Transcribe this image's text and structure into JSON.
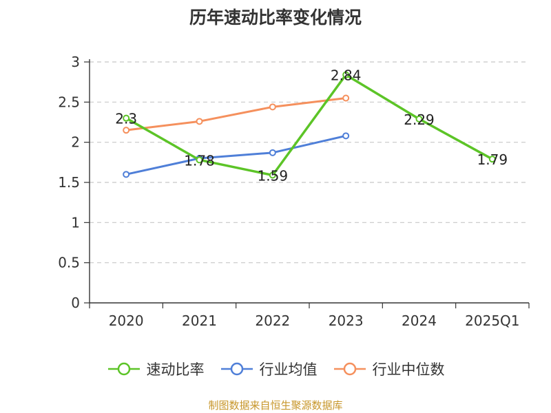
{
  "chart_data": {
    "type": "line",
    "title": "历年速动比率变化情况",
    "categories": [
      "2020",
      "2021",
      "2022",
      "2023",
      "2024",
      "2025Q1"
    ],
    "ylim": [
      0,
      3
    ],
    "yticks": [
      "0",
      "0.5",
      "1",
      "1.5",
      "2",
      "2.5",
      "3"
    ],
    "grid": true,
    "legend_position": "bottom",
    "series": [
      {
        "name": "速动比率",
        "color": "#5cc427",
        "values": [
          2.3,
          1.78,
          1.59,
          2.84,
          2.29,
          1.79
        ],
        "labels": [
          "2.3",
          "1.78",
          "1.59",
          "2.84",
          "2.29",
          "1.79"
        ]
      },
      {
        "name": "行业均值",
        "color": "#4f7fd8",
        "values": [
          1.6,
          1.8,
          1.87,
          2.08,
          null,
          null
        ]
      },
      {
        "name": "行业中位数",
        "color": "#f5905d",
        "values": [
          2.15,
          2.26,
          2.44,
          2.55,
          null,
          null
        ]
      }
    ]
  },
  "source_note": "制图数据来自恒生聚源数据库"
}
